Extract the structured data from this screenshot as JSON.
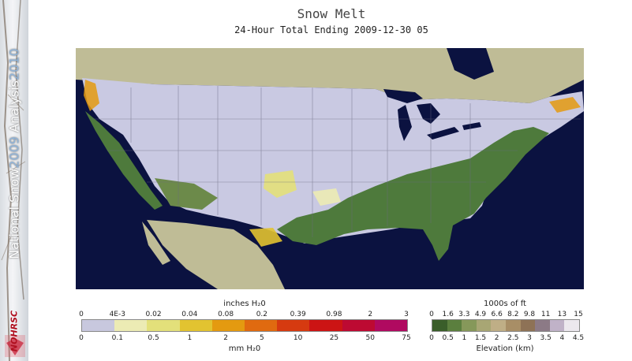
{
  "sidebar": {
    "title_main": "National Snow",
    "year_1": "2009",
    "title_analysis": "Analysis",
    "year_2": "2010",
    "logo_text": "NOHRSC"
  },
  "header": {
    "title": "Snow Melt",
    "subtitle": "24-Hour Total Ending 2009-12-30 05"
  },
  "map_colors": {
    "ocean": "#0b1240",
    "foreign_land": "#bfbc96",
    "no_melt": "#c9c9e2",
    "low_elev": "#4e7a3c",
    "great_lakes": "#0b1240"
  },
  "snowmelt_legend": {
    "unit_top": "inches H₂0",
    "unit_bottom": "mm H₂0",
    "top_ticks": [
      "0",
      "4E-3",
      "0.02",
      "0.04",
      "0.08",
      "0.2",
      "0.39",
      "0.98",
      "2",
      "3"
    ],
    "bottom_ticks": [
      "0",
      "0.1",
      "0.5",
      "1",
      "2",
      "5",
      "10",
      "25",
      "50",
      "75"
    ],
    "colors": [
      "#c8c8de",
      "#ecebb4",
      "#e3e07a",
      "#e2c330",
      "#e49a10",
      "#e06a10",
      "#d63a10",
      "#cc1414",
      "#bd0a32",
      "#b00a60"
    ]
  },
  "elevation_legend": {
    "unit_top": "1000s of ft",
    "unit_bottom": "Elevation (km)",
    "top_ticks": [
      "0",
      "1.6",
      "3.3",
      "4.9",
      "6.6",
      "8.2",
      "9.8",
      "11",
      "13",
      "15"
    ],
    "bottom_ticks": [
      "0",
      "0.5",
      "1",
      "1.5",
      "2",
      "2.5",
      "3",
      "3.5",
      "4",
      "4.5"
    ],
    "colors": [
      "#3a5e2a",
      "#5b7f3e",
      "#86985a",
      "#a8a674",
      "#bfae86",
      "#a88e66",
      "#8e7256",
      "#8c7a86",
      "#c0b2c8",
      "#ece8ee"
    ]
  }
}
